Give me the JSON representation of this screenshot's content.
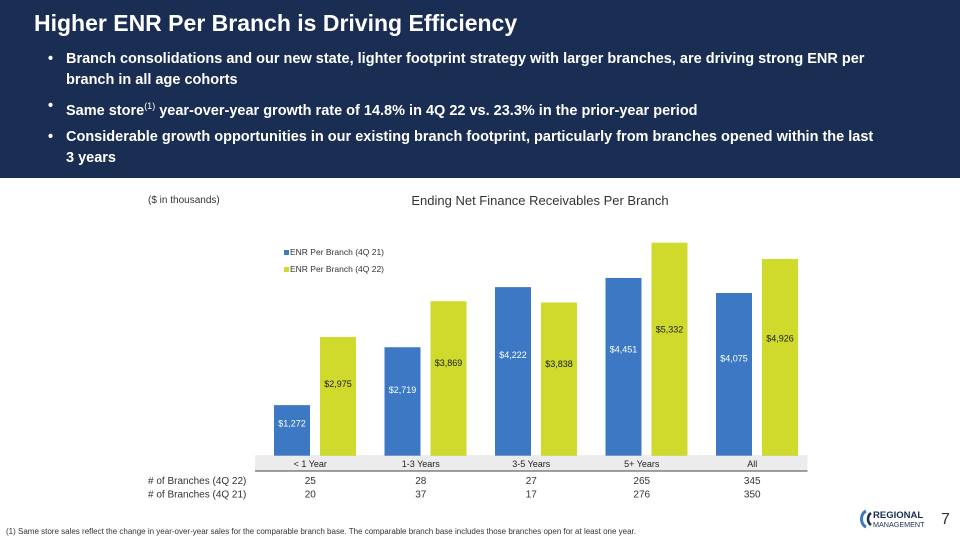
{
  "header": {
    "title": "Higher ENR Per Branch is Driving Efficiency",
    "bullets": [
      {
        "text": "Branch consolidations and our new state, lighter footprint strategy with larger branches, are driving strong ENR per branch in all age cohorts"
      },
      {
        "pre": "Same store",
        "sup": "(1)",
        "post": " year-over-year growth rate of 14.8% in 4Q 22 vs. 23.3% in the prior-year period"
      },
      {
        "text": "Considerable growth opportunities in our existing branch footprint, particularly from branches opened within the last 3 years"
      }
    ]
  },
  "units_note": "($ in thousands)",
  "chart_data": {
    "type": "bar",
    "title": "Ending Net Finance Receivables Per Branch",
    "categories": [
      "< 1 Year",
      "1-3 Years",
      "3-5 Years",
      "5+ Years",
      "All"
    ],
    "series": [
      {
        "name": "ENR Per Branch (4Q 21)",
        "color": "#3c78c3",
        "values": [
          1272,
          2719,
          4222,
          4451,
          4075
        ],
        "labels": [
          "$1,272",
          "$2,719",
          "$4,222",
          "$4,451",
          "$4,075"
        ]
      },
      {
        "name": "ENR Per Branch (4Q 22)",
        "color": "#d0da2c",
        "values": [
          2975,
          3869,
          3838,
          5332,
          4926
        ],
        "labels": [
          "$2,975",
          "$3,869",
          "$3,838",
          "$5,332",
          "$4,926"
        ]
      }
    ],
    "ylim": [
      0,
      5500
    ],
    "legend": "top-left",
    "grid": false,
    "table_rows": [
      {
        "label": "# of Branches (4Q 22)",
        "values": [
          "25",
          "28",
          "27",
          "265",
          "345"
        ]
      },
      {
        "label": "# of Branches (4Q 21)",
        "values": [
          "20",
          "37",
          "17",
          "276",
          "350"
        ]
      }
    ]
  },
  "footnote": "(1) Same store sales reflect the change in year-over-year sales for the comparable branch base. The comparable branch base includes those branches open for at least one year.",
  "logo": {
    "line1": "REGIONAL",
    "line2": "MANAGEMENT"
  },
  "page_number": "7",
  "colors": {
    "header_bg": "#1a2d52",
    "series_4q21": "#3c78c3",
    "series_4q22": "#d0da2c"
  }
}
